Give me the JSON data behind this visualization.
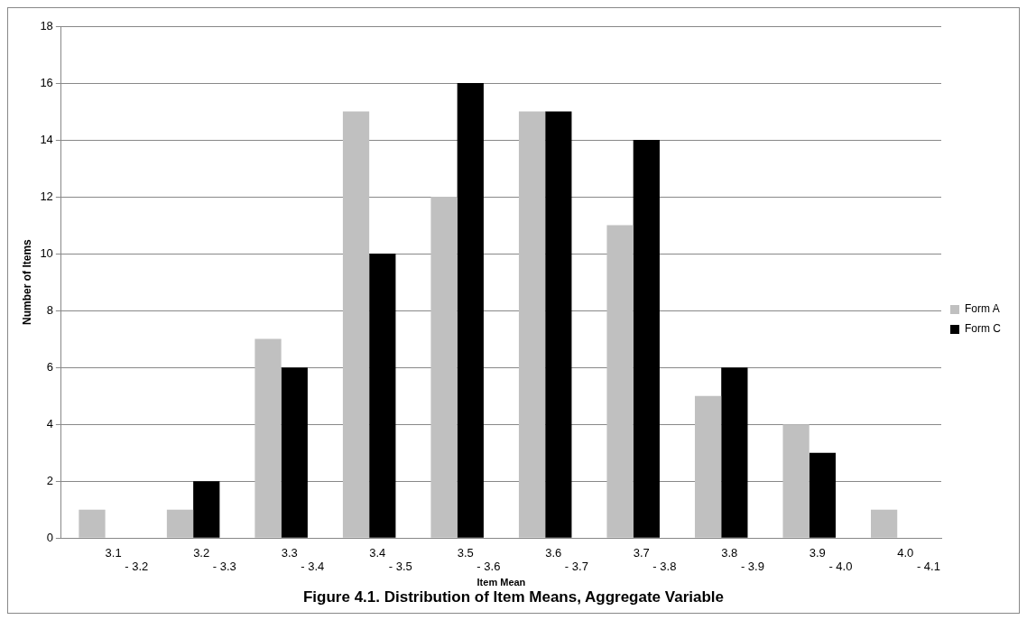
{
  "chart_data": {
    "type": "bar",
    "title": "Figure 4.1. Distribution of Item Means, Aggregate Variable",
    "xlabel": "Item Mean",
    "ylabel": "Number of Items",
    "categories": [
      "3.1 - 3.2",
      "3.2 - 3.3",
      "3.3 - 3.4",
      "3.4 - 3.5",
      "3.5 - 3.6",
      "3.6 - 3.7",
      "3.7 - 3.8",
      "3.8 - 3.9",
      "3.9 - 4.0",
      "4.0 - 4.1"
    ],
    "series": [
      {
        "name": "Form A",
        "color": "#c0c0c0",
        "values": [
          1,
          1,
          7,
          15,
          12,
          15,
          11,
          5,
          4,
          1
        ]
      },
      {
        "name": "Form C",
        "color": "#000000",
        "values": [
          0,
          2,
          6,
          10,
          16,
          15,
          14,
          6,
          3,
          0
        ]
      }
    ],
    "ylim": [
      0,
      18
    ],
    "yticks": [
      0,
      2,
      4,
      6,
      8,
      10,
      12,
      14,
      16,
      18
    ],
    "grid": "y",
    "legend": "right"
  }
}
